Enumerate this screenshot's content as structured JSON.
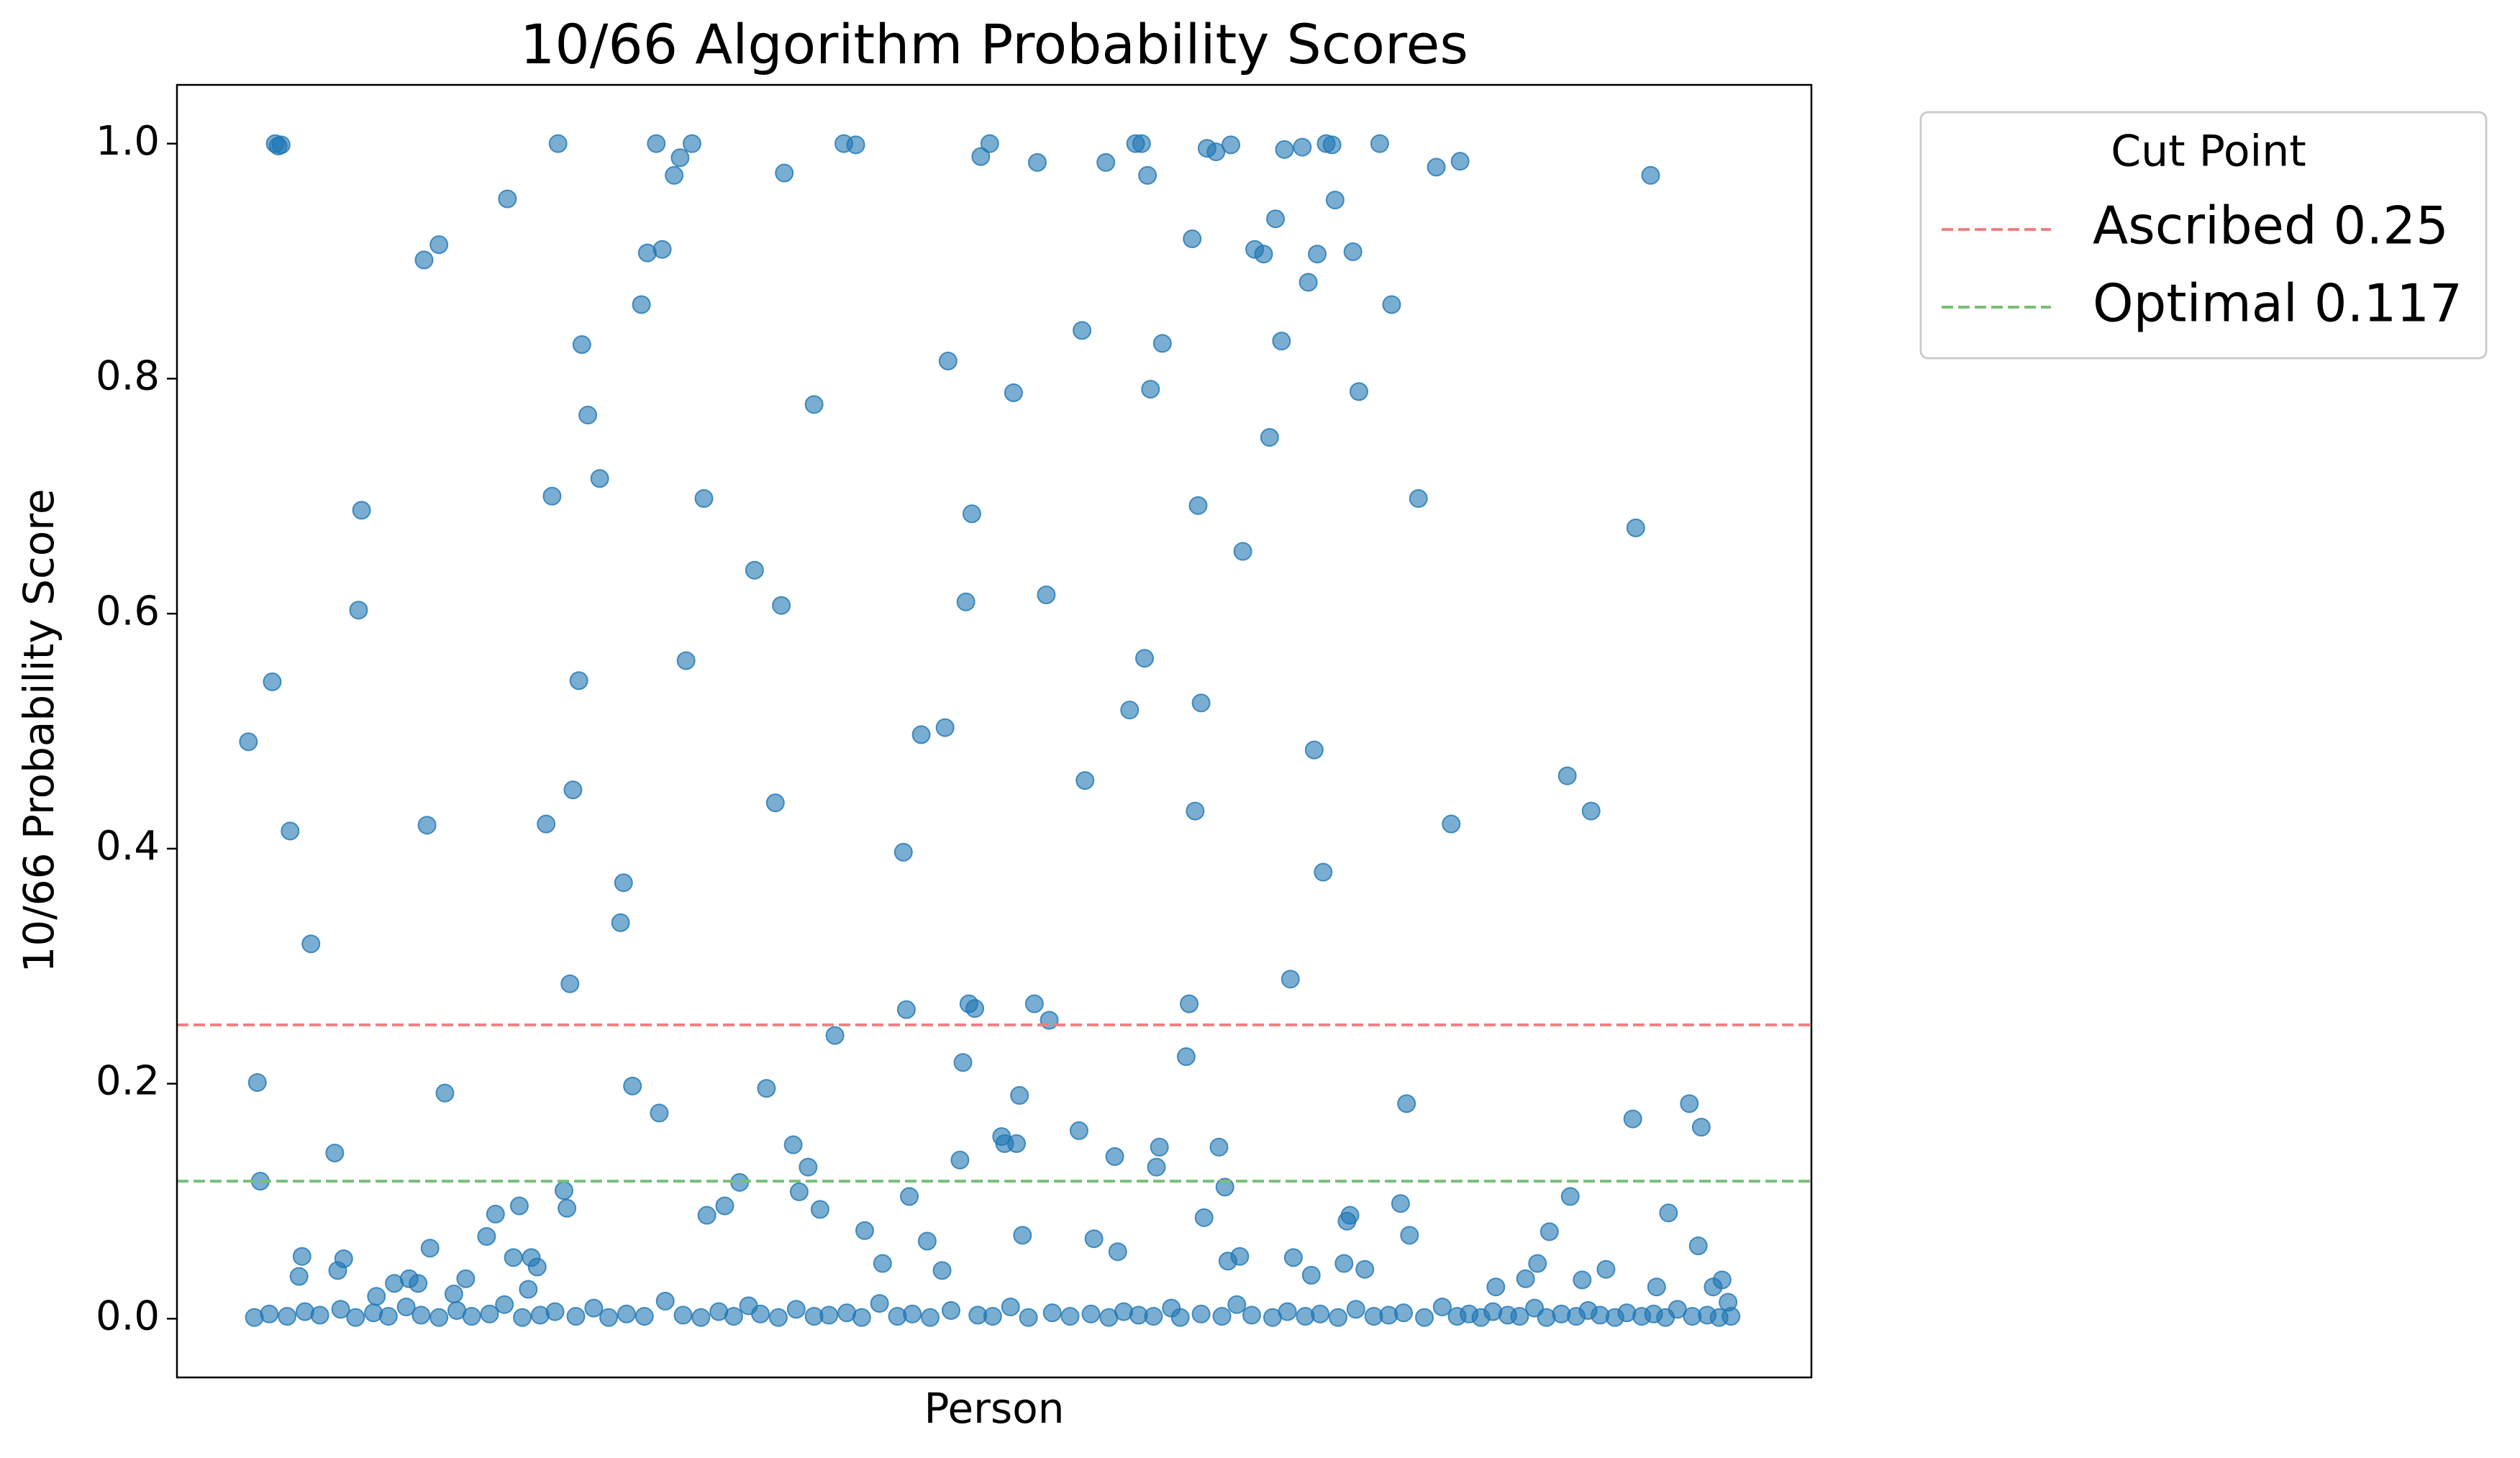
{
  "chart_data": {
    "type": "scatter",
    "title": "10/66 Algorithm Probability Scores",
    "x_label": "Person",
    "y_label": "10/66 Probability Score",
    "xlim": [
      -24,
      525
    ],
    "ylim": [
      -0.05,
      1.05
    ],
    "yticks": [
      {
        "value": 0,
        "label": "0.0"
      },
      0.2,
      0.4,
      0.6,
      0.8,
      {
        "value": 1,
        "label": "1.0"
      }
    ],
    "grid": false,
    "legend_title": "Cut Point",
    "legend_position": "outside upper right",
    "hlines": [
      {
        "name": "Ascribed 0.25",
        "value": 0.25,
        "color": "#f08080"
      },
      {
        "name": "Optimal 0.117",
        "value": 0.117,
        "color": "#77c077"
      }
    ],
    "series": [
      {
        "color": "#1f77b4",
        "x": [
          0,
          3,
          4,
          8,
          9,
          10,
          11,
          14,
          17,
          18,
          21,
          29,
          30,
          32,
          37,
          38,
          43,
          49,
          54,
          57,
          59,
          60,
          61,
          64,
          66,
          69,
          73,
          80,
          83,
          87,
          89,
          91,
          95,
          94,
          97,
          100,
          102,
          104,
          106,
          107,
          108,
          109,
          111,
          112,
          114,
          118,
          125,
          126,
          129,
          132,
          134,
          137,
          138,
          139,
          143,
          145,
          147,
          149,
          153,
          154,
          160,
          165,
          170,
          174,
          177,
          179,
          180,
          183,
          185,
          188,
          190,
          192,
          197,
          200,
          204,
          207,
          213,
          220,
          221,
          222,
          226,
          228,
          233,
          234,
          235,
          239,
          240,
          241,
          242,
          243,
          244,
          246,
          249,
          253,
          254,
          257,
          258,
          259,
          260,
          264,
          265,
          268,
          269,
          279,
          280,
          281,
          284,
          288,
          291,
          292,
          296,
          298,
          300,
          301,
          302,
          303,
          305,
          306,
          307,
          315,
          316,
          317,
          318,
          319,
          320,
          321,
          322,
          325,
          326,
          328,
          329,
          330,
          333,
          334,
          338,
          341,
          343,
          345,
          347,
          348,
          350,
          351,
          354,
          356,
          357,
          358,
          359,
          361,
          362,
          364,
          365,
          369,
          370,
          371,
          368,
          373,
          375,
          380,
          384,
          387,
          389,
          390,
          393,
          399,
          404,
          407,
          419,
          429,
          433,
          437,
          443,
          444,
          448,
          451,
          456,
          465,
          466,
          471,
          473,
          477,
          484,
          487,
          488,
          492,
          495,
          497,
          2,
          7,
          13,
          19,
          24,
          31,
          36,
          42,
          47,
          53,
          58,
          64,
          70,
          75,
          81,
          86,
          92,
          98,
          103,
          110,
          116,
          121,
          127,
          133,
          140,
          146,
          152,
          158,
          163,
          168,
          172,
          178,
          184,
          190,
          195,
          201,
          206,
          212,
          218,
          223,
          229,
          236,
          245,
          250,
          256,
          262,
          270,
          276,
          283,
          289,
          294,
          299,
          304,
          310,
          313,
          320,
          327,
          332,
          337,
          344,
          349,
          355,
          360,
          366,
          372,
          378,
          383,
          388,
          395,
          401,
          406,
          410,
          414,
          418,
          423,
          427,
          432,
          436,
          441,
          446,
          450,
          454,
          459,
          463,
          468,
          472,
          476,
          480,
          485,
          490,
          494,
          498
        ],
        "values": [
          0.491,
          0.201,
          0.117,
          0.542,
          1.0,
          0.998,
          0.999,
          0.415,
          0.036,
          0.053,
          0.319,
          0.141,
          0.041,
          0.051,
          0.603,
          0.688,
          0.019,
          0.03,
          0.034,
          0.03,
          0.901,
          0.42,
          0.06,
          0.914,
          0.192,
          0.021,
          0.034,
          0.07,
          0.089,
          0.953,
          0.052,
          0.096,
          0.052,
          0.025,
          0.044,
          0.421,
          0.7,
          1.0,
          0.109,
          0.094,
          0.285,
          0.45,
          0.543,
          0.829,
          0.769,
          0.715,
          0.337,
          0.371,
          0.198,
          0.863,
          0.907,
          1.0,
          0.175,
          0.91,
          0.973,
          0.988,
          0.56,
          1.0,
          0.698,
          0.088,
          0.096,
          0.116,
          0.637,
          0.196,
          0.439,
          0.607,
          0.975,
          0.148,
          0.108,
          0.129,
          0.778,
          0.093,
          0.241,
          1.0,
          0.999,
          0.075,
          0.047,
          0.397,
          0.263,
          0.104,
          0.497,
          0.066,
          0.041,
          0.503,
          0.815,
          0.135,
          0.218,
          0.61,
          0.268,
          0.685,
          0.264,
          0.989,
          1.0,
          0.155,
          0.149,
          0.788,
          0.149,
          0.19,
          0.071,
          0.268,
          0.984,
          0.616,
          0.254,
          0.16,
          0.841,
          0.458,
          0.068,
          0.984,
          0.138,
          0.057,
          0.518,
          1.0,
          1.0,
          0.562,
          0.973,
          0.791,
          0.129,
          0.146,
          0.83,
          0.223,
          0.268,
          0.919,
          0.432,
          0.692,
          0.524,
          0.086,
          0.996,
          0.993,
          0.146,
          0.112,
          0.049,
          0.999,
          0.053,
          0.653,
          0.91,
          0.906,
          0.75,
          0.936,
          0.832,
          0.995,
          0.289,
          0.052,
          0.997,
          0.882,
          0.037,
          0.484,
          0.906,
          0.38,
          1.0,
          0.999,
          0.952,
          0.083,
          0.088,
          0.908,
          0.047,
          0.789,
          0.042,
          1.0,
          0.863,
          0.098,
          0.183,
          0.071,
          0.698,
          0.98,
          0.421,
          0.985,
          0.027,
          0.034,
          0.047,
          0.074,
          0.462,
          0.104,
          0.033,
          0.432,
          0.042,
          0.17,
          0.673,
          0.973,
          0.027,
          0.09,
          0.183,
          0.062,
          0.163,
          0.027,
          0.033,
          0.014,
          0.001,
          0.004,
          0.002,
          0.006,
          0.003,
          0.008,
          0.001,
          0.005,
          0.002,
          0.01,
          0.003,
          0.001,
          0.007,
          0.002,
          0.004,
          0.012,
          0.001,
          0.003,
          0.006,
          0.002,
          0.009,
          0.001,
          0.004,
          0.002,
          0.015,
          0.003,
          0.001,
          0.006,
          0.002,
          0.011,
          0.004,
          0.001,
          0.008,
          0.002,
          0.003,
          0.005,
          0.001,
          0.013,
          0.002,
          0.004,
          0.001,
          0.007,
          0.003,
          0.002,
          0.01,
          0.001,
          0.005,
          0.002,
          0.004,
          0.001,
          0.006,
          0.003,
          0.002,
          0.009,
          0.001,
          0.004,
          0.002,
          0.012,
          0.003,
          0.001,
          0.006,
          0.002,
          0.004,
          0.001,
          0.008,
          0.002,
          0.003,
          0.005,
          0.001,
          0.01,
          0.002,
          0.004,
          0.001,
          0.006,
          0.003,
          0.002,
          0.009,
          0.001,
          0.004,
          0.002,
          0.007,
          0.003,
          0.001,
          0.005,
          0.002,
          0.004,
          0.001,
          0.008,
          0.002,
          0.003,
          0.001,
          0.002
        ]
      }
    ]
  }
}
